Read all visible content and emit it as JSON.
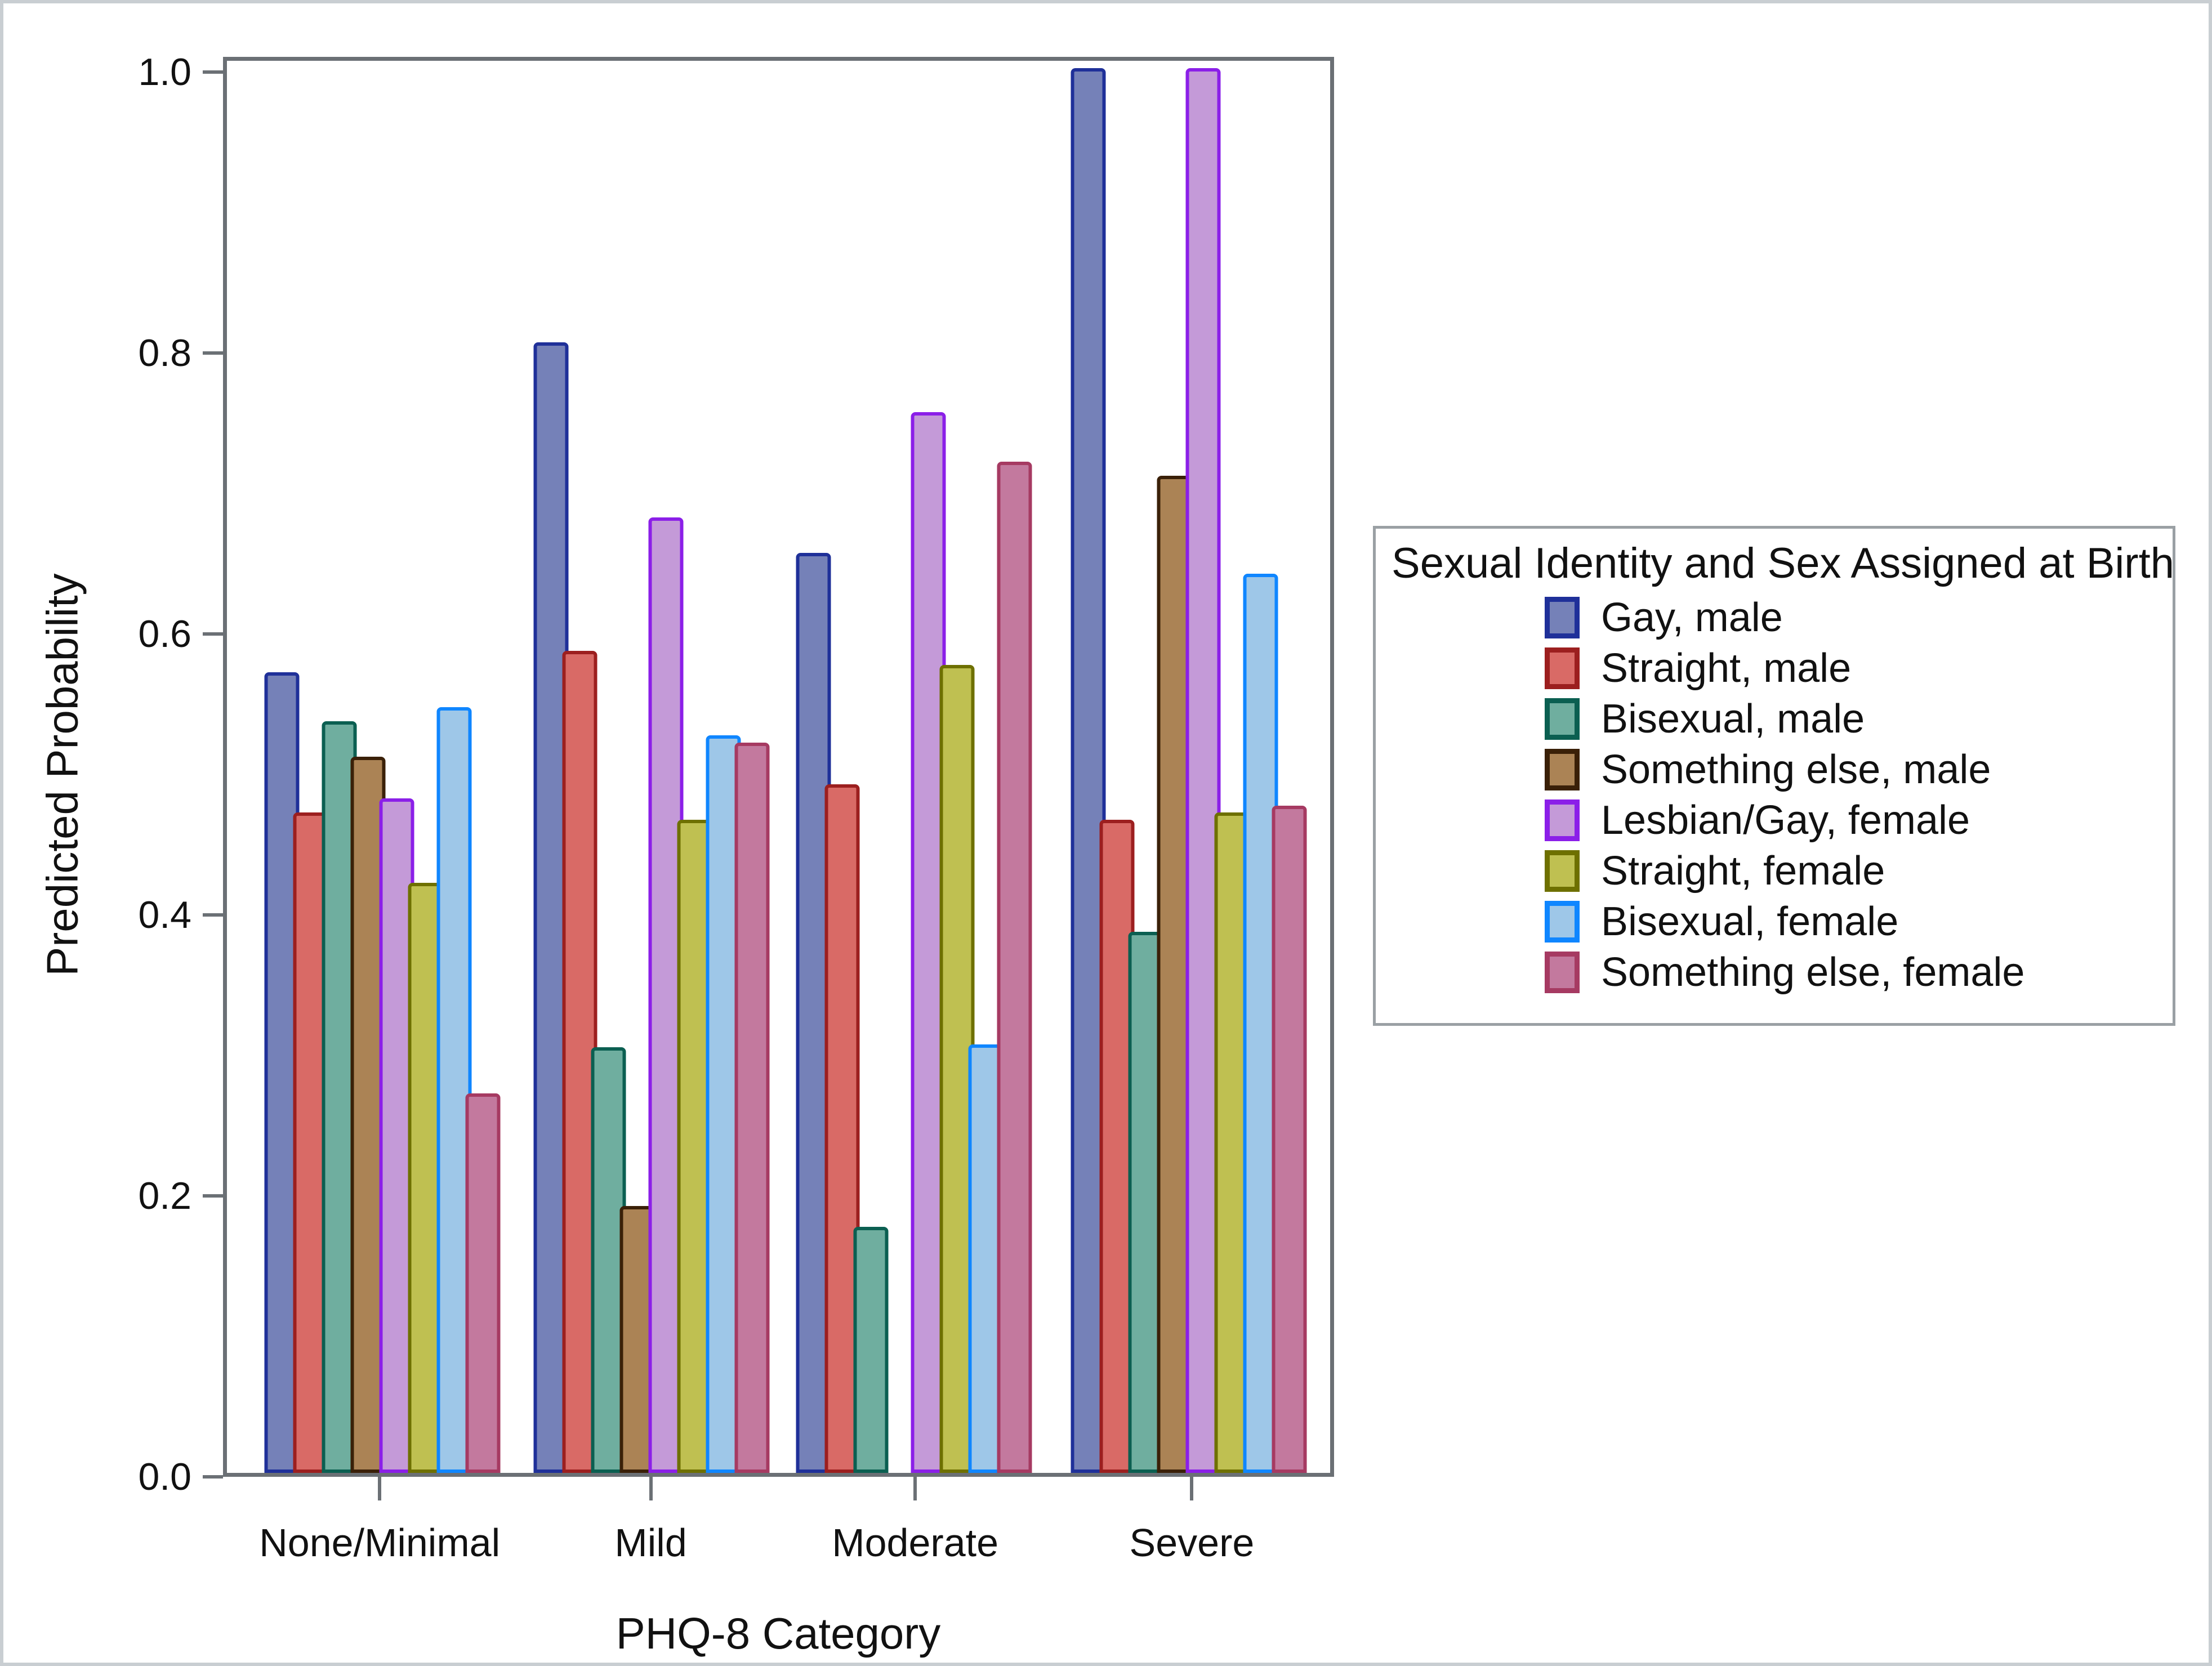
{
  "chart_data": {
    "type": "bar",
    "title": "",
    "xlabel": "PHQ-8 Category",
    "ylabel": "Predicted Probability",
    "ylim": [
      0.0,
      1.0
    ],
    "yticks": [
      "0.0",
      "0.2",
      "0.4",
      "0.6",
      "0.8",
      "1.0"
    ],
    "grid": false,
    "legend_title": "Sexual Identity and Sex Assigned at Birth",
    "legend_position": "right",
    "categories": [
      "None/Minimal",
      "Mild",
      "Moderate",
      "Severe"
    ],
    "series": [
      {
        "name": "Gay, male",
        "fill": "#7581b8",
        "stroke": "#1f3099",
        "values": [
          0.57,
          0.805,
          0.655,
          1.0
        ]
      },
      {
        "name": "Straight, male",
        "fill": "#d96a66",
        "stroke": "#9c1f1f",
        "values": [
          0.47,
          0.585,
          0.49,
          0.465
        ]
      },
      {
        "name": "Bisexual, male",
        "fill": "#6fae9f",
        "stroke": "#0b5f51",
        "values": [
          0.535,
          0.303,
          0.175,
          0.385
        ]
      },
      {
        "name": "Something else, male",
        "fill": "#ab8355",
        "stroke": "#3a2008",
        "values": [
          0.51,
          0.19,
          0.0,
          0.71
        ]
      },
      {
        "name": "Lesbian/Gay, female",
        "fill": "#c49ad8",
        "stroke": "#8b1fe8",
        "values": [
          0.48,
          0.68,
          0.755,
          1.0
        ]
      },
      {
        "name": "Straight, female",
        "fill": "#bfc051",
        "stroke": "#6e7000",
        "values": [
          0.42,
          0.465,
          0.575,
          0.47
        ]
      },
      {
        "name": "Bisexual, female",
        "fill": "#9ec7e8",
        "stroke": "#0f86ff",
        "values": [
          0.545,
          0.525,
          0.305,
          0.64
        ]
      },
      {
        "name": "Something else, female",
        "fill": "#c3799e",
        "stroke": "#a63a62",
        "values": [
          0.27,
          0.52,
          0.72,
          0.475
        ]
      }
    ]
  }
}
